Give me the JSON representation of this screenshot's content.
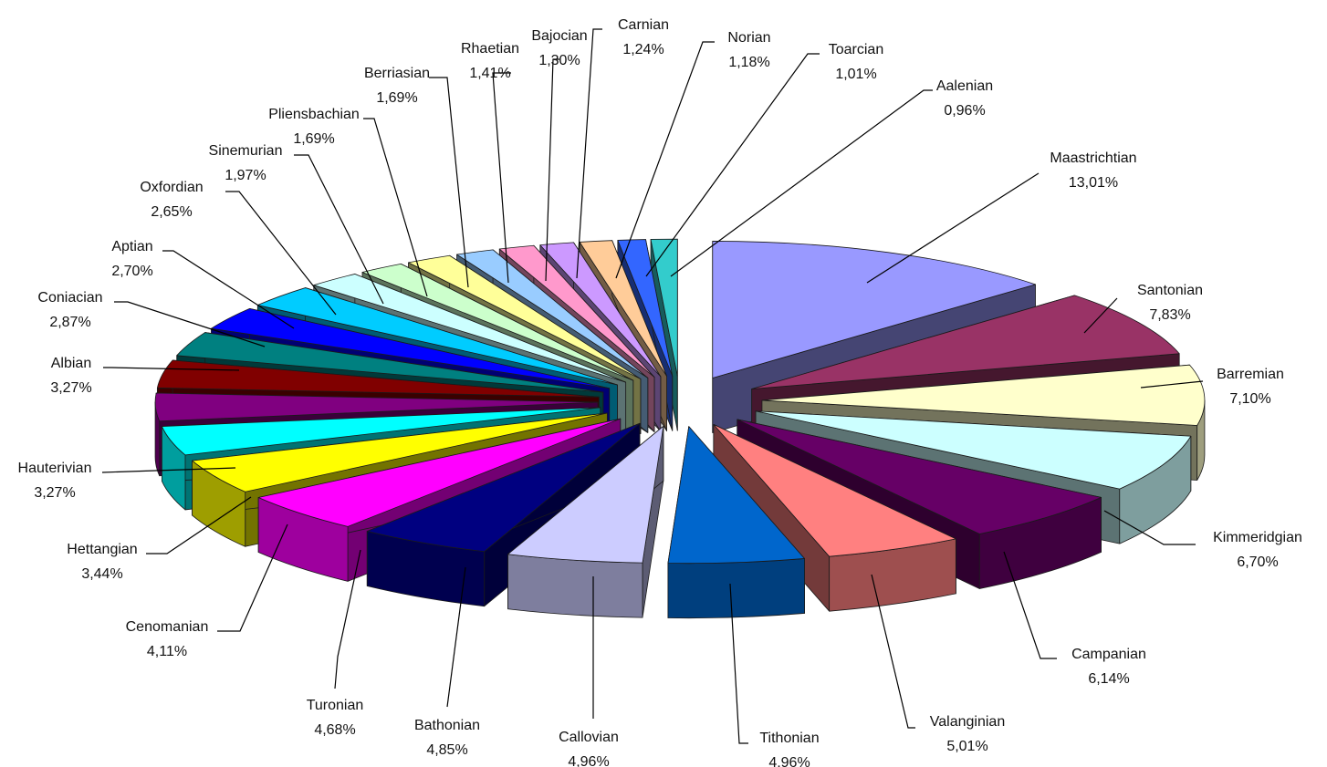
{
  "chart_data": {
    "type": "pie",
    "title": "",
    "exploded": true,
    "three_d": true,
    "legend": "none",
    "slices": [
      {
        "name": "Maastrichtian",
        "value": 13.01,
        "label": "13,01%",
        "color": "#9999ff"
      },
      {
        "name": "Santonian",
        "value": 7.83,
        "label": "7,83%",
        "color": "#993366"
      },
      {
        "name": "Barremian",
        "value": 7.1,
        "label": "7,10%",
        "color": "#ffffcc"
      },
      {
        "name": "Kimmeridgian",
        "value": 6.7,
        "label": "6,70%",
        "color": "#ccffff"
      },
      {
        "name": "Campanian",
        "value": 6.14,
        "label": "6,14%",
        "color": "#660066"
      },
      {
        "name": "Valanginian",
        "value": 5.01,
        "label": "5,01%",
        "color": "#ff8080"
      },
      {
        "name": "Tithonian",
        "value": 4.96,
        "label": "4,96%",
        "color": "#0066cc"
      },
      {
        "name": "Callovian",
        "value": 4.96,
        "label": "4,96%",
        "color": "#ccccff"
      },
      {
        "name": "Bathonian",
        "value": 4.85,
        "label": "4,85%",
        "color": "#000080"
      },
      {
        "name": "Turonian",
        "value": 4.68,
        "label": "4,68%",
        "color": "#ff00ff"
      },
      {
        "name": "Cenomanian",
        "value": 4.11,
        "label": "4,11%",
        "color": "#ffff00"
      },
      {
        "name": "Hettangian",
        "value": 3.44,
        "label": "3,44%",
        "color": "#00ffff"
      },
      {
        "name": "Hauterivian",
        "value": 3.27,
        "label": "3,27%",
        "color": "#800080"
      },
      {
        "name": "Albian",
        "value": 3.27,
        "label": "3,27%",
        "color": "#800000"
      },
      {
        "name": "Coniacian",
        "value": 2.87,
        "label": "2,87%",
        "color": "#008080"
      },
      {
        "name": "Aptian",
        "value": 2.7,
        "label": "2,70%",
        "color": "#0000ff"
      },
      {
        "name": "Oxfordian",
        "value": 2.65,
        "label": "2,65%",
        "color": "#00ccff"
      },
      {
        "name": "Sinemurian",
        "value": 1.97,
        "label": "1,97%",
        "color": "#ccffff"
      },
      {
        "name": "Pliensbachian",
        "value": 1.69,
        "label": "1,69%",
        "color": "#ccffcc"
      },
      {
        "name": "Berriasian",
        "value": 1.69,
        "label": "1,69%",
        "color": "#ffff99"
      },
      {
        "name": "Rhaetian",
        "value": 1.41,
        "label": "1,41%",
        "color": "#99ccff"
      },
      {
        "name": "Bajocian",
        "value": 1.3,
        "label": "1,30%",
        "color": "#ff99cc"
      },
      {
        "name": "Carnian",
        "value": 1.24,
        "label": "1,24%",
        "color": "#cc99ff"
      },
      {
        "name": "Norian",
        "value": 1.18,
        "label": "1,18%",
        "color": "#ffcc99"
      },
      {
        "name": "Toarcian",
        "value": 1.01,
        "label": "1,01%",
        "color": "#3366ff"
      },
      {
        "name": "Aalenian",
        "value": 0.96,
        "label": "0,96%",
        "color": "#33cccc"
      }
    ]
  }
}
